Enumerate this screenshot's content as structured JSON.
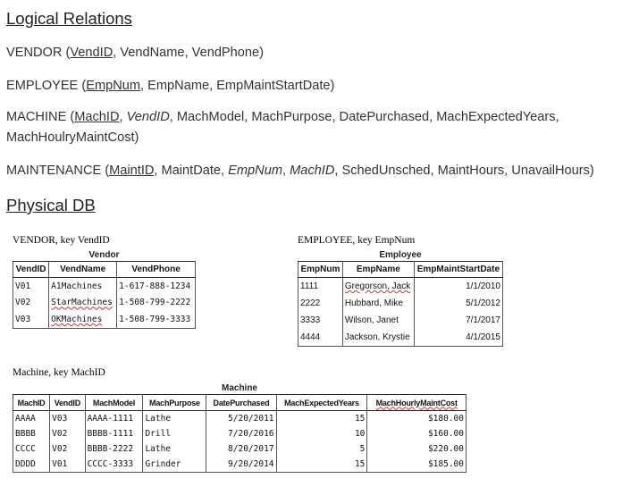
{
  "logical": {
    "heading": "Logical Relations",
    "vendor": {
      "name": "VENDOR",
      "open": " (",
      "key": "VendID",
      "rest": ", VendName, VendPhone)"
    },
    "employee": {
      "name": "EMPLOYEE",
      "open": " (",
      "key": "EmpNum",
      "rest": ", EmpName, EmpMaintStartDate)"
    },
    "machine": {
      "name": "MACHINE",
      "open": " (",
      "key": "MachID",
      "sep1": ", ",
      "fk1": "VendID",
      "rest1": ", MachModel, MachPurpose, DatePurchased, MachExpectedYears,",
      "line2": "MachHoulryMaintCost)"
    },
    "maintenance": {
      "name": "MAINTENANCE",
      "open": " (",
      "key": "MaintID",
      "rest1": ", MaintDate, ",
      "fk1": "EmpNum",
      "sep": ", ",
      "fk2": "MachID",
      "rest2": ", SchedUnsched, MaintHours, UnavailHours)"
    }
  },
  "physical": {
    "heading": "Physical DB",
    "vendor": {
      "caption": "VENDOR, key VendID",
      "title": "Vendor",
      "headers": [
        "VendID",
        "VendName",
        "VendPhone"
      ],
      "rows": [
        [
          "V01",
          "A1Machines",
          "1-617-888-1234"
        ],
        [
          "V02",
          "StarMachines",
          "1-508-799-2222"
        ],
        [
          "V03",
          "OKMachines",
          "1-508-799-3333"
        ]
      ]
    },
    "employee": {
      "caption": "EMPLOYEE, key EmpNum",
      "title": "Employee",
      "headers": [
        "EmpNum",
        "EmpName",
        "EmpMaintStartDate"
      ],
      "rows": [
        [
          "1111",
          "Gregorson, Jack",
          "1/1/2010"
        ],
        [
          "2222",
          "Hubbard, Mike",
          "5/1/2012"
        ],
        [
          "3333",
          "Wilson, Janet",
          "7/1/2017"
        ],
        [
          "4444",
          "Jackson, Krystie",
          "4/1/2015"
        ]
      ]
    },
    "machine": {
      "caption": "Machine, key MachID",
      "title": "Machine",
      "headers": [
        "MachID",
        "VendID",
        "MachModel",
        "MachPurpose",
        "DatePurchased",
        "MachExpectedYears",
        "MachHourlyMaintCost"
      ],
      "rows": [
        [
          "AAAA",
          "V03",
          "AAAA-1111",
          "Lathe",
          "5/20/2011",
          "15",
          "$180.00"
        ],
        [
          "BBBB",
          "V02",
          "BBBB-1111",
          "Drill",
          "7/20/2016",
          "10",
          "$160.00"
        ],
        [
          "CCCC",
          "V02",
          "BBBB-2222",
          "Lathe",
          "8/20/2017",
          "5",
          "$220.00"
        ],
        [
          "DDDD",
          "V01",
          "CCCC-3333",
          "Grinder",
          "9/20/2014",
          "15",
          "$185.00"
        ]
      ]
    }
  }
}
